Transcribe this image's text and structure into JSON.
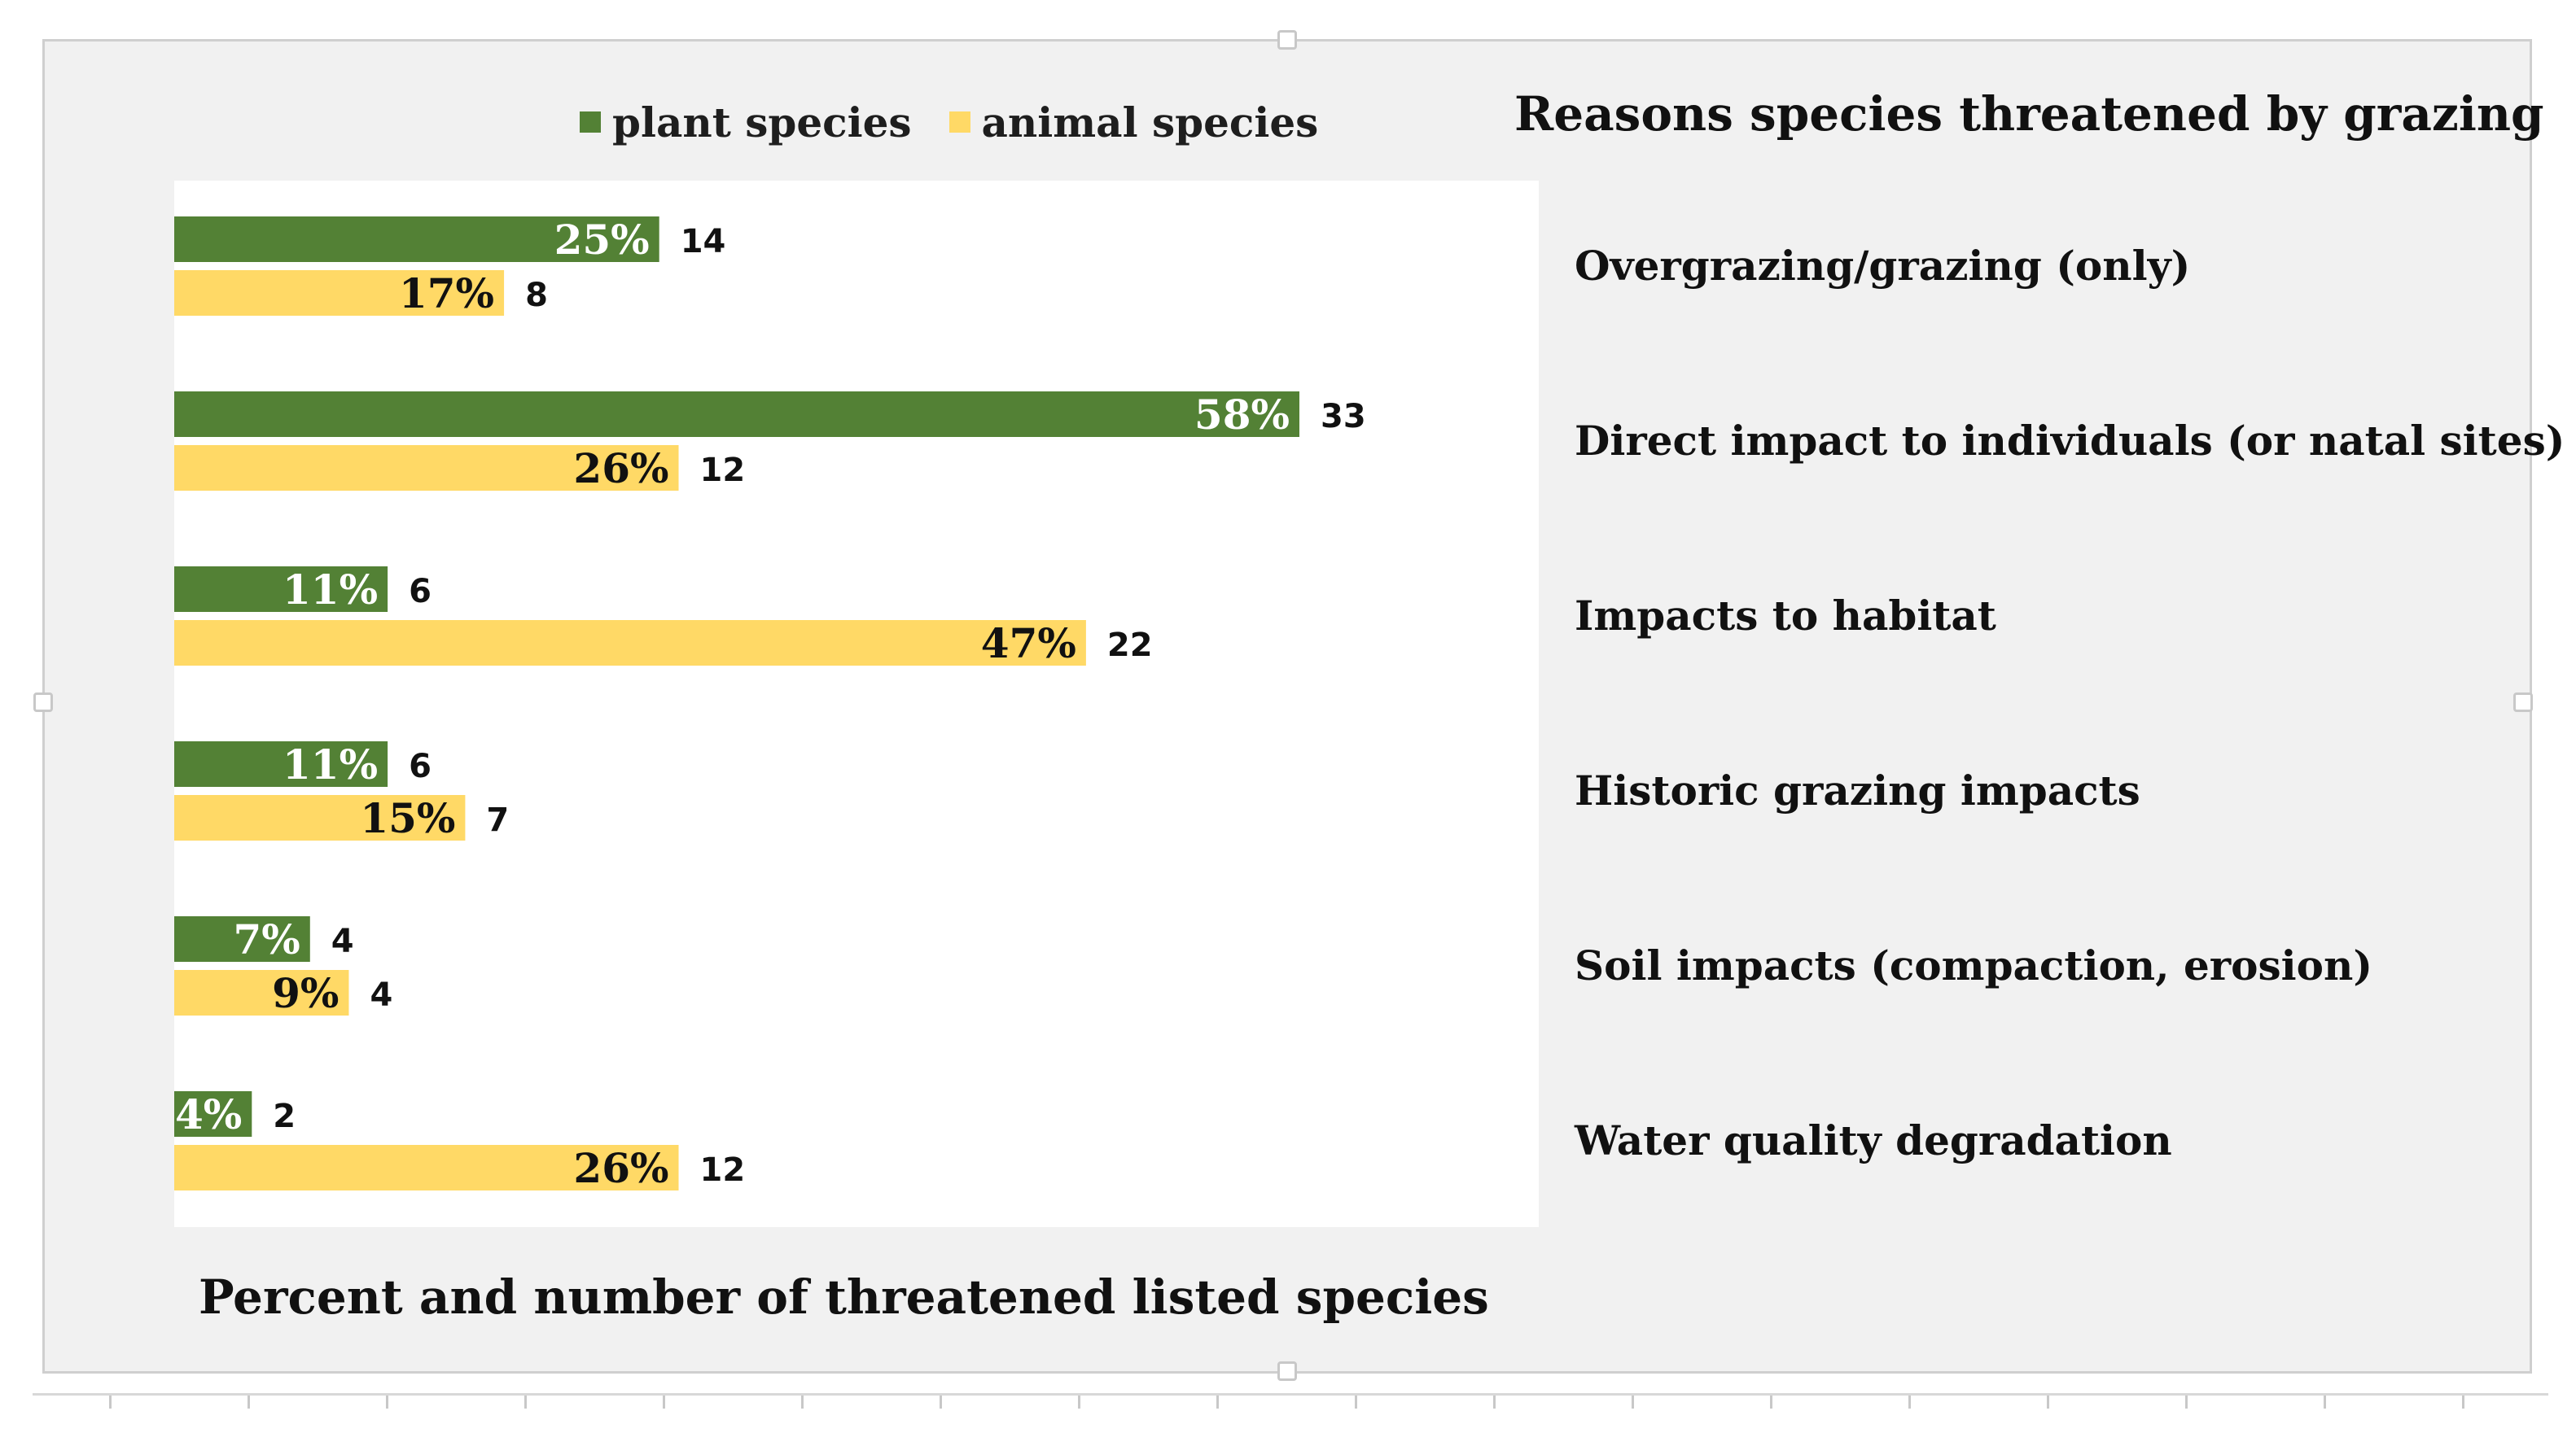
{
  "chart_data": {
    "type": "bar",
    "orientation": "horizontal",
    "title": "Reasons species threatened by grazing",
    "xlabel": "Percent and number of threatened listed species",
    "ylabel": "",
    "xlim": [
      0,
      70
    ],
    "legend_position": "top",
    "categories": [
      "Overgrazing/grazing (only)",
      "Direct impact to individuals (or natal sites)",
      "Impacts to habitat",
      "Historic grazing impacts",
      "Soil impacts (compaction, erosion)",
      "Water quality degradation"
    ],
    "series": [
      {
        "name": "plant species",
        "color": "#538135",
        "values": [
          25,
          58,
          11,
          11,
          7,
          4
        ],
        "percent_labels": [
          "25%",
          "58%",
          "11%",
          "11%",
          "7%",
          "4%"
        ],
        "counts": [
          "14",
          "33",
          "6",
          "6",
          "4",
          "2"
        ]
      },
      {
        "name": "animal species",
        "color": "#ffd966",
        "values": [
          17,
          26,
          47,
          15,
          9,
          26
        ],
        "percent_labels": [
          "17%",
          "26%",
          "47%",
          "15%",
          "9%",
          "26%"
        ],
        "counts": [
          "8",
          "12",
          "22",
          "7",
          "4",
          "12"
        ]
      }
    ]
  }
}
